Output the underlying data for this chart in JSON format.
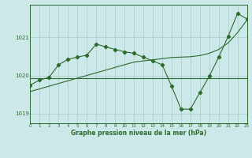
{
  "hours": [
    0,
    1,
    2,
    3,
    4,
    5,
    6,
    7,
    8,
    9,
    10,
    11,
    12,
    13,
    14,
    15,
    16,
    17,
    18,
    19,
    20,
    21,
    22,
    23
  ],
  "line_main": [
    1019.75,
    1019.88,
    1019.95,
    1020.28,
    1020.42,
    1020.48,
    1020.53,
    1020.82,
    1020.75,
    1020.68,
    1020.62,
    1020.58,
    1020.48,
    1020.38,
    1020.28,
    1019.72,
    1019.12,
    1019.12,
    1019.55,
    1019.98,
    1020.48,
    1021.02,
    1021.62,
    1021.48
  ],
  "line_trend": [
    1019.58,
    1019.65,
    1019.72,
    1019.79,
    1019.86,
    1019.93,
    1020.0,
    1020.07,
    1020.14,
    1020.21,
    1020.28,
    1020.35,
    1020.38,
    1020.41,
    1020.44,
    1020.47,
    1020.48,
    1020.49,
    1020.52,
    1020.58,
    1020.68,
    1020.85,
    1021.12,
    1021.45
  ],
  "line_flat": [
    1019.92,
    1019.92,
    1019.92,
    1019.92,
    1019.92,
    1019.92,
    1019.92,
    1019.92,
    1019.92,
    1019.92,
    1019.92,
    1019.92,
    1019.92,
    1019.92,
    1019.92,
    1019.92,
    1019.92,
    1019.92,
    1019.92,
    1019.92,
    1019.92,
    1019.92,
    1019.92,
    1019.92
  ],
  "line_color": "#2d6a2d",
  "bg_color": "#cce8e8",
  "grid_color": "#aacccc",
  "xlabel": "Graphe pression niveau de la mer (hPa)",
  "yticks": [
    1019,
    1020,
    1021
  ],
  "ylim": [
    1018.75,
    1021.85
  ],
  "xlim": [
    0,
    23
  ]
}
